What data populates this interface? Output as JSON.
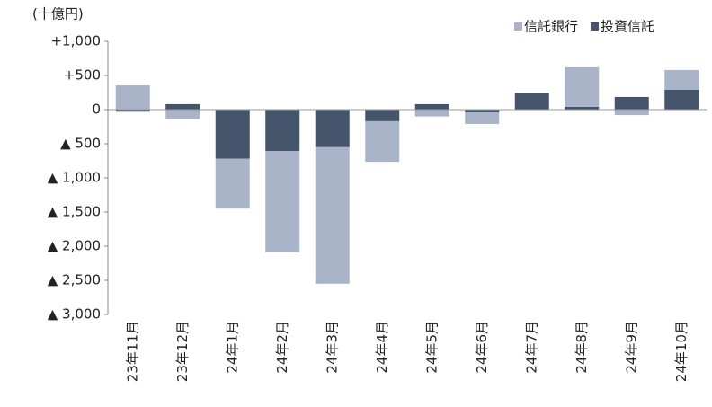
{
  "chart_data": {
    "type": "bar",
    "stacked": true,
    "unit_label": "(十億円)",
    "categories": [
      "23年11月",
      "23年12月",
      "24年1月",
      "24年2月",
      "24年3月",
      "24年4月",
      "24年5月",
      "24年6月",
      "24年7月",
      "24年8月",
      "24年9月",
      "24年10月"
    ],
    "series": [
      {
        "name": "信託銀行",
        "color": "#aab4c8",
        "values": [
          355,
          -140,
          -730,
          -1485,
          -2000,
          -595,
          -100,
          -170,
          10,
          580,
          -80,
          290
        ]
      },
      {
        "name": "投資信託",
        "color": "#44546a",
        "values": [
          -30,
          80,
          -720,
          -605,
          -550,
          -170,
          80,
          -40,
          240,
          40,
          185,
          290
        ]
      }
    ],
    "ylim": [
      -3000,
      1000
    ],
    "yticks": [
      {
        "value": 1000,
        "label": "+1,000"
      },
      {
        "value": 500,
        "label": "+500"
      },
      0,
      {
        "value": -500,
        "label": "▲ 500"
      },
      {
        "value": -1000,
        "label": "▲ 1,000"
      },
      {
        "value": -1500,
        "label": "▲ 1,500"
      },
      {
        "value": -2000,
        "label": "▲ 2,000"
      },
      {
        "value": -2500,
        "label": "▲ 2,500"
      },
      {
        "value": -3000,
        "label": "▲ 3,000"
      }
    ],
    "legend": "top-right"
  }
}
